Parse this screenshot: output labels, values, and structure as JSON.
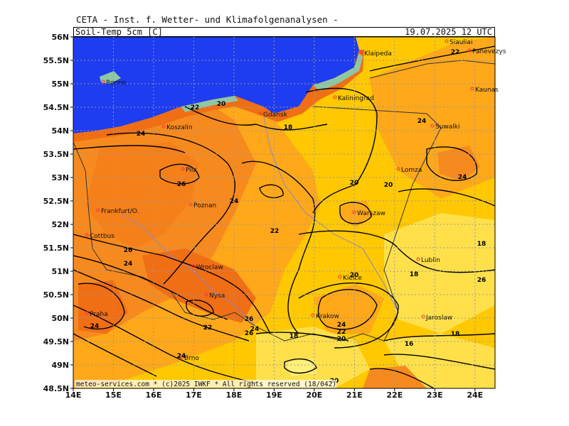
{
  "header": {
    "source": "CETA - Inst. f. Wetter- und Klimafolgenanalysen -",
    "parameter": "Soil-Temp_5cm_[C]",
    "valid_time": "19.07.2025 12 UTC"
  },
  "footer": "meteo-services.com * (c)2025 IWKF * All rights reserved (18/042)",
  "lat_ticks": [
    "56N",
    "55.5N",
    "55N",
    "54.5N",
    "54N",
    "53.5N",
    "53N",
    "52.5N",
    "52N",
    "51.5N",
    "51N",
    "50.5N",
    "50N",
    "49.5N",
    "49N",
    "48.5N"
  ],
  "lon_ticks": [
    "14E",
    "15E",
    "16E",
    "17E",
    "18E",
    "19E",
    "20E",
    "21E",
    "22E",
    "23E",
    "24E"
  ],
  "cities": [
    "Ronne",
    "Klaipeda",
    "Siauliai",
    "Panevezys",
    "Kaunas",
    "Kaliningrad",
    "Gdansk",
    "Koszalin",
    "Suwalki",
    "Lomza",
    "Pila",
    "Poznan",
    "Frankfurt/O.",
    "Warszaw",
    "Cottbus",
    "Wroclaw",
    "Lublin",
    "Kielce",
    "Nysa",
    "Praha",
    "Krakow",
    "Jaroslaw",
    "Brno"
  ],
  "contour_labels": [
    "22",
    "20",
    "24",
    "18",
    "22",
    "26",
    "20",
    "20",
    "24",
    "24",
    "22",
    "26",
    "24",
    "18",
    "20",
    "26",
    "24",
    "18",
    "24",
    "26",
    "22",
    "26",
    "24",
    "20",
    "22",
    "24",
    "18",
    "16",
    "18",
    "24",
    "20"
  ],
  "colors": {
    "sea": "#1e3cf0",
    "coast_land": "#8fc7a4",
    "temp_16": "#fff07a",
    "temp_18": "#ffe04a",
    "temp_20": "#ffc800",
    "temp_22": "#ffa81a",
    "temp_24": "#f78a1e",
    "temp_26": "#f06e14"
  }
}
